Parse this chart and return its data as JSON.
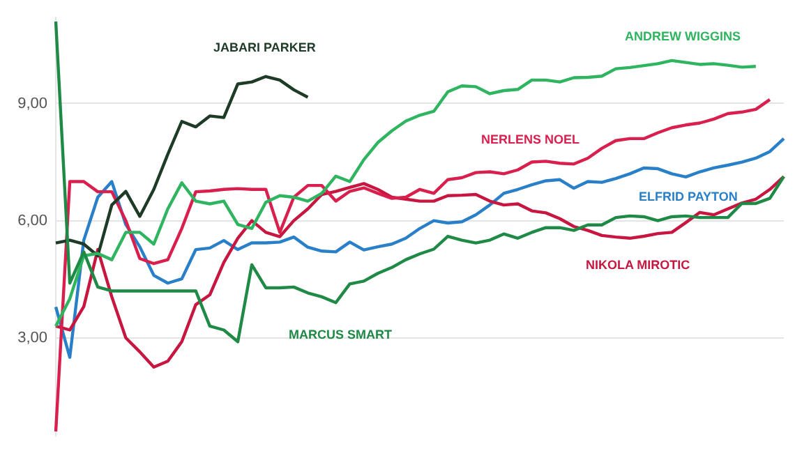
{
  "chart_data": {
    "type": "line",
    "categories": [
      null,
      null,
      null,
      null,
      null,
      null,
      null,
      null,
      null,
      null,
      null,
      null,
      null,
      null,
      null,
      null,
      null,
      null,
      null,
      null,
      null,
      null,
      null,
      null,
      null,
      null,
      null,
      null,
      null,
      null,
      null,
      null,
      null,
      null,
      null,
      null,
      null,
      null,
      null,
      null,
      null,
      null,
      null,
      null,
      null,
      null,
      null,
      null,
      null,
      null,
      null,
      null,
      null
    ],
    "ylim": [
      0.5,
      11.2
    ],
    "yticks": [
      {
        "value": 3,
        "label": "3,00"
      },
      {
        "value": 6,
        "label": "6,00"
      },
      {
        "value": 9,
        "label": "9,00"
      }
    ],
    "grid": "y",
    "tick_labels": "y",
    "marker": "none",
    "series": [
      {
        "name": "MARCUS SMART",
        "color": "#1f8a46",
        "values": [
          11.1,
          4.4,
          5.2,
          4.3,
          4.2,
          4.2,
          4.2,
          4.2,
          4.2,
          4.2,
          4.2,
          3.3,
          3.2,
          2.9,
          4.87,
          4.28,
          4.28,
          4.3,
          4.15,
          4.05,
          3.9,
          4.38,
          4.45,
          4.65,
          4.8,
          5.0,
          5.15,
          5.27,
          5.6,
          5.5,
          5.43,
          5.5,
          5.66,
          5.55,
          5.7,
          5.82,
          5.82,
          5.75,
          5.89,
          5.89,
          6.08,
          6.12,
          6.1,
          6.0,
          6.1,
          6.12,
          6.08,
          6.08,
          6.08,
          6.44,
          6.44,
          6.57,
          7.13
        ]
      },
      {
        "name": "ANDREW WIGGINS",
        "color": "#2fb460",
        "values": [
          3.3,
          4.0,
          5.1,
          5.16,
          5.0,
          5.7,
          5.7,
          5.4,
          6.3,
          6.97,
          6.5,
          6.43,
          6.5,
          5.9,
          5.8,
          6.47,
          6.64,
          6.6,
          6.5,
          6.7,
          7.14,
          7.0,
          7.56,
          8.0,
          8.3,
          8.55,
          8.7,
          8.8,
          9.3,
          9.45,
          9.43,
          9.25,
          9.33,
          9.36,
          9.6,
          9.6,
          9.55,
          9.66,
          9.67,
          9.7,
          9.89,
          9.92,
          9.97,
          10.02,
          10.1,
          10.05,
          10.0,
          10.02,
          9.98,
          9.93,
          9.95,
          null,
          null
        ]
      },
      {
        "name": "JABARI PARKER",
        "color": "#1d3b27",
        "values": [
          5.43,
          5.5,
          5.4,
          5.1,
          6.4,
          6.75,
          6.11,
          6.8,
          7.7,
          8.54,
          8.4,
          8.68,
          8.64,
          9.5,
          9.55,
          9.69,
          9.6,
          9.35,
          9.16,
          null,
          null,
          null,
          null,
          null,
          null,
          null,
          null,
          null,
          null,
          null,
          null,
          null,
          null,
          null,
          null,
          null,
          null,
          null,
          null,
          null,
          null,
          null,
          null,
          null,
          null,
          null,
          null,
          null,
          null,
          null,
          null,
          null,
          null
        ]
      },
      {
        "name": "NERLENS NOEL",
        "color": "#d81f4d",
        "values": [
          0.6,
          7.0,
          7.0,
          6.74,
          6.74,
          6.0,
          5.03,
          4.9,
          5.0,
          5.8,
          6.74,
          6.76,
          6.8,
          6.82,
          6.8,
          6.8,
          5.7,
          6.6,
          6.9,
          6.9,
          6.5,
          6.75,
          6.84,
          6.7,
          6.57,
          6.6,
          6.8,
          6.7,
          7.05,
          7.1,
          7.23,
          7.25,
          7.2,
          7.3,
          7.5,
          7.52,
          7.47,
          7.45,
          7.6,
          7.85,
          8.05,
          8.1,
          8.1,
          8.25,
          8.38,
          8.45,
          8.5,
          8.6,
          8.74,
          8.78,
          8.85,
          9.1,
          null
        ]
      },
      {
        "name": "NIKOLA MIROTIC",
        "color": "#c7163f",
        "values": [
          3.3,
          3.2,
          3.8,
          5.26,
          4.05,
          3.0,
          2.64,
          2.25,
          2.4,
          2.9,
          3.85,
          4.1,
          4.93,
          5.55,
          6.0,
          5.7,
          5.59,
          6.0,
          6.3,
          6.67,
          6.75,
          6.85,
          6.95,
          6.8,
          6.6,
          6.55,
          6.5,
          6.5,
          6.64,
          6.65,
          6.67,
          6.5,
          6.4,
          6.43,
          6.25,
          6.2,
          6.05,
          5.85,
          5.75,
          5.62,
          5.58,
          5.55,
          5.6,
          5.67,
          5.7,
          5.95,
          6.21,
          6.15,
          6.3,
          6.45,
          6.55,
          6.8,
          7.13
        ]
      },
      {
        "name": "ELFRID PAYTON",
        "color": "#2a80c8",
        "values": [
          3.79,
          2.5,
          5.5,
          6.6,
          7.0,
          5.9,
          5.33,
          4.6,
          4.4,
          4.51,
          5.26,
          5.3,
          5.49,
          5.26,
          5.43,
          5.43,
          5.45,
          5.58,
          5.32,
          5.22,
          5.2,
          5.45,
          5.25,
          5.33,
          5.4,
          5.55,
          5.8,
          6.0,
          5.94,
          5.97,
          6.15,
          6.4,
          6.7,
          6.8,
          6.92,
          7.02,
          7.05,
          6.83,
          7.0,
          6.98,
          7.08,
          7.2,
          7.35,
          7.33,
          7.2,
          7.12,
          7.25,
          7.35,
          7.42,
          7.5,
          7.6,
          7.77,
          8.1
        ]
      }
    ]
  }
}
